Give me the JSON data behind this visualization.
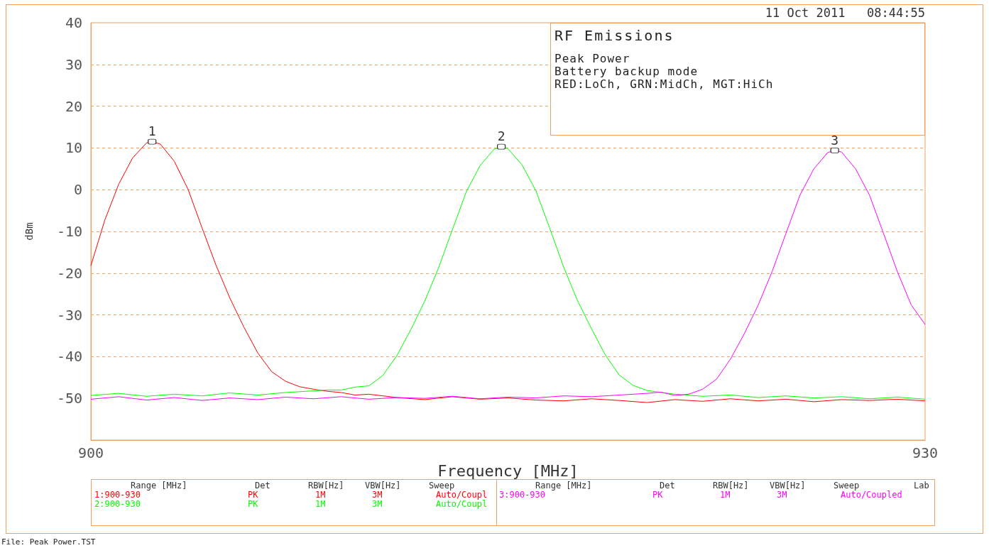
{
  "chart_data": {
    "type": "line",
    "title": "RF Emissions",
    "xlabel": "Frequency [MHz]",
    "ylabel": "dBm",
    "legend_title": "Range [MHz]",
    "annotations": [
      "11 Oct 2011   08:44:55",
      "Peak Power",
      "Battery backup mode",
      "RED:LoCh, GRN:MidCh, MGT:HiCh",
      "File: Peak Power.TST",
      "Det",
      "RBW[Hz]",
      "VBW[Hz]",
      "Sweep",
      "Lab",
      "PK",
      "1M",
      "3M",
      "Auto/Coupl",
      "PK",
      "1M",
      "3M",
      "Auto/Coupl",
      "PK",
      "1M",
      "3M",
      "Auto/Coupled",
      {
        "text": "1",
        "x": 902.2,
        "y": 11.5
      },
      {
        "text": "2",
        "x": 914.76,
        "y": 10.3
      },
      {
        "text": "3",
        "x": 926.75,
        "y": 9.4
      }
    ],
    "xlim": [
      900,
      930
    ],
    "xticks": [
      900,
      930
    ],
    "ylim": [
      -60,
      40
    ],
    "yticks": [
      -50,
      -40,
      -30,
      -20,
      -10,
      0,
      10,
      20,
      30,
      40
    ],
    "grid": "y",
    "legend": "bottom",
    "series": [
      {
        "name": "1:900-930",
        "color": "#ff0000",
        "x": [
          900,
          900.5,
          901,
          901.5,
          902,
          902.2,
          902.5,
          903,
          903.5,
          904,
          904.5,
          905,
          905.5,
          906,
          906.5,
          907,
          907.5,
          908,
          908.5,
          909,
          909.5,
          910,
          911,
          912,
          913,
          914,
          915,
          916,
          917,
          918,
          919,
          920,
          921,
          922,
          923,
          924,
          925,
          926,
          927,
          928,
          929,
          930
        ],
        "values": [
          -18.2,
          -7.3,
          1.3,
          7.6,
          11.2,
          11.5,
          10.9,
          6.8,
          0,
          -9.2,
          -18.1,
          -26,
          -32.9,
          -39.1,
          -43.6,
          -45.9,
          -47.2,
          -47.8,
          -48.3,
          -48.6,
          -49.2,
          -49,
          -49.8,
          -50.3,
          -49.6,
          -50.2,
          -49.9,
          -50.4,
          -50.6,
          -50.1,
          -50.5,
          -51,
          -50.3,
          -50.7,
          -50.1,
          -50.6,
          -50.2,
          -50.8,
          -50.3,
          -50.5,
          -50.2,
          -50.6
        ]
      },
      {
        "name": "2:900-930",
        "color": "#00ff00",
        "x": [
          900,
          901,
          902,
          903,
          904,
          905,
          906,
          907,
          908,
          908.5,
          909,
          909.5,
          910,
          910.5,
          911,
          911.5,
          912,
          912.5,
          913,
          913.5,
          914,
          914.5,
          914.76,
          915,
          915.5,
          916,
          916.5,
          917,
          917.5,
          918,
          918.5,
          919,
          919.5,
          920,
          920.5,
          921,
          922,
          923,
          924,
          925,
          926,
          927,
          928,
          929,
          930
        ],
        "values": [
          -49.3,
          -48.8,
          -49.5,
          -49,
          -49.4,
          -48.7,
          -49.2,
          -48.6,
          -48.2,
          -48,
          -48,
          -47.3,
          -47,
          -44.5,
          -39.8,
          -33.6,
          -26.8,
          -18.8,
          -9.6,
          -0.5,
          5.8,
          9.7,
          10.3,
          9.8,
          6,
          -0.2,
          -9.2,
          -18.5,
          -26.6,
          -33.3,
          -39.6,
          -44.4,
          -46.9,
          -48.1,
          -48.6,
          -49,
          -49.5,
          -49.2,
          -49.8,
          -49.4,
          -49.9,
          -49.6,
          -50.1,
          -49.7,
          -50.2
        ]
      },
      {
        "name": "3:900-930",
        "color": "#ff00ff",
        "x": [
          900,
          901,
          902,
          903,
          904,
          905,
          906,
          907,
          908,
          909,
          910,
          911,
          912,
          913,
          914,
          915,
          916,
          917,
          918,
          919,
          920,
          920.5,
          921,
          921.5,
          922,
          922.5,
          923,
          923.5,
          924,
          924.5,
          925,
          925.5,
          926,
          926.5,
          926.75,
          927,
          927.5,
          928,
          928.5,
          929,
          929.5,
          930
        ],
        "values": [
          -50.2,
          -49.6,
          -50.4,
          -49.8,
          -50.5,
          -49.9,
          -50.3,
          -49.7,
          -50.1,
          -49.6,
          -50.2,
          -49.8,
          -50,
          -49.5,
          -50.1,
          -49.7,
          -49.9,
          -49.4,
          -49.6,
          -49.2,
          -48.8,
          -48.5,
          -49.3,
          -49,
          -47.8,
          -45.4,
          -40.6,
          -34.5,
          -27.6,
          -19.6,
          -10.4,
          -1.3,
          5,
          8.9,
          9.4,
          9,
          5,
          -1.3,
          -10.4,
          -19.6,
          -27.6,
          -32.3
        ]
      }
    ]
  }
}
